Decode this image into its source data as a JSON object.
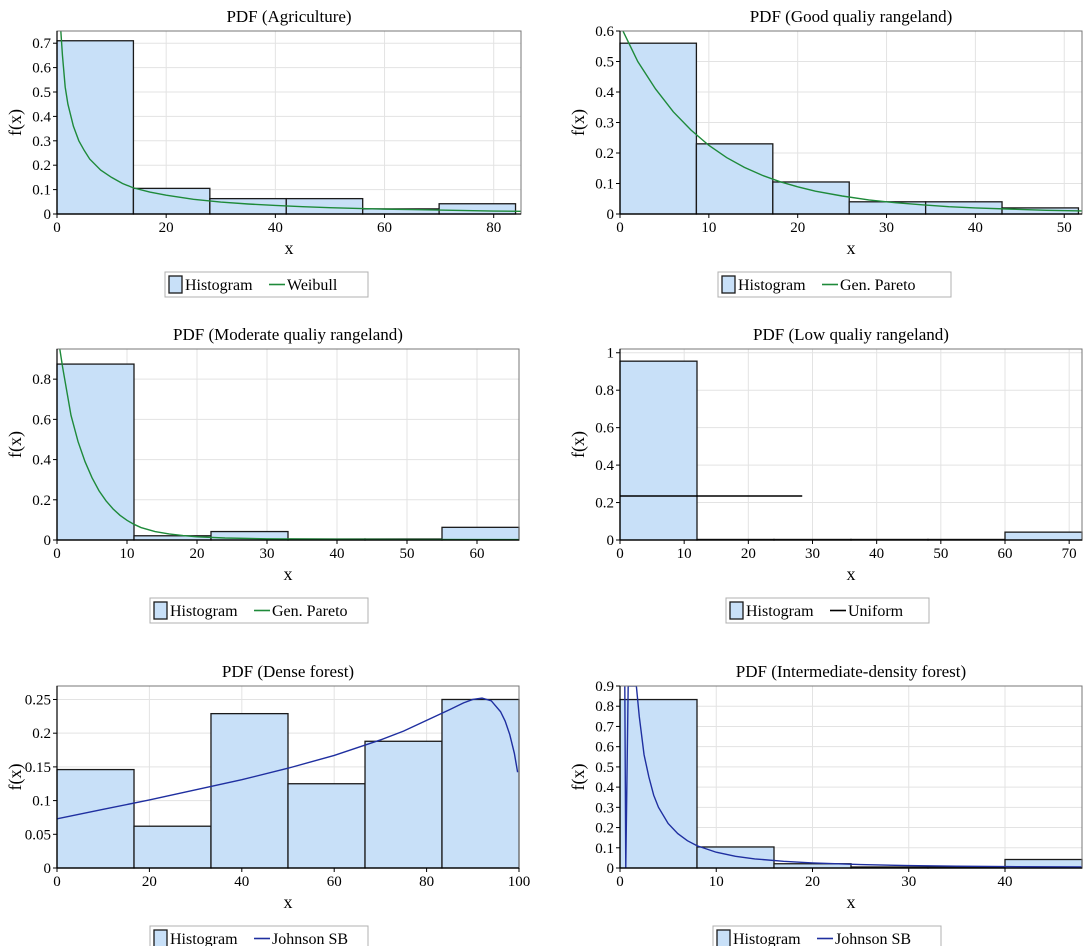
{
  "chart_data": [
    {
      "type": "bar",
      "title": "PDF (Agriculture)",
      "xlabel": "x",
      "ylabel": "f(x)",
      "xlim": [
        0,
        85
      ],
      "ylim": [
        0,
        0.75
      ],
      "xticks": [
        0,
        20,
        40,
        60,
        80
      ],
      "xtick_labels": [
        "0",
        "20",
        "40",
        "60",
        "80"
      ],
      "yticks": [
        0,
        0.1,
        0.2,
        0.3,
        0.4,
        0.5,
        0.6,
        0.7
      ],
      "ytick_labels": [
        "0",
        "0.1",
        "0.2",
        "0.3",
        "0.4",
        "0.5",
        "0.6",
        "0.7"
      ],
      "bins": [
        {
          "x0": 0,
          "x1": 14,
          "y": 0.71
        },
        {
          "x0": 14,
          "x1": 28,
          "y": 0.105
        },
        {
          "x0": 28,
          "x1": 42,
          "y": 0.063
        },
        {
          "x0": 42,
          "x1": 56,
          "y": 0.063
        },
        {
          "x0": 56,
          "x1": 70,
          "y": 0.021
        },
        {
          "x0": 70,
          "x1": 84,
          "y": 0.042
        }
      ],
      "fit": {
        "name": "Weibull",
        "color": "#1e8a3a",
        "points": [
          [
            0.7,
            0.75
          ],
          [
            1,
            0.65
          ],
          [
            1.5,
            0.52
          ],
          [
            2,
            0.45
          ],
          [
            3,
            0.36
          ],
          [
            4,
            0.3
          ],
          [
            5,
            0.26
          ],
          [
            6,
            0.225
          ],
          [
            8,
            0.18
          ],
          [
            10,
            0.15
          ],
          [
            12,
            0.125
          ],
          [
            14,
            0.107
          ],
          [
            17,
            0.09
          ],
          [
            20,
            0.077
          ],
          [
            25,
            0.06
          ],
          [
            30,
            0.049
          ],
          [
            35,
            0.041
          ],
          [
            40,
            0.035
          ],
          [
            45,
            0.03
          ],
          [
            50,
            0.026
          ],
          [
            55,
            0.023
          ],
          [
            60,
            0.02
          ],
          [
            65,
            0.018
          ],
          [
            70,
            0.016
          ],
          [
            75,
            0.014
          ],
          [
            80,
            0.012
          ],
          [
            85,
            0.011
          ]
        ]
      },
      "legend": [
        "Histogram",
        "Weibull"
      ]
    },
    {
      "type": "bar",
      "title": "PDF (Good qualiy rangeland)",
      "xlabel": "x",
      "ylabel": "f(x)",
      "xlim": [
        0,
        52
      ],
      "ylim": [
        0,
        0.6
      ],
      "xticks": [
        0,
        10,
        20,
        30,
        40,
        50
      ],
      "xtick_labels": [
        "0",
        "10",
        "20",
        "30",
        "40",
        "50"
      ],
      "yticks": [
        0,
        0.1,
        0.2,
        0.3,
        0.4,
        0.5,
        0.6
      ],
      "ytick_labels": [
        "0",
        "0.1",
        "0.2",
        "0.3",
        "0.4",
        "0.5",
        "0.6"
      ],
      "bins": [
        {
          "x0": 0,
          "x1": 8.6,
          "y": 0.56
        },
        {
          "x0": 8.6,
          "x1": 17.2,
          "y": 0.23
        },
        {
          "x0": 17.2,
          "x1": 25.8,
          "y": 0.105
        },
        {
          "x0": 25.8,
          "x1": 34.4,
          "y": 0.04
        },
        {
          "x0": 34.4,
          "x1": 43,
          "y": 0.04
        },
        {
          "x0": 43,
          "x1": 51.6,
          "y": 0.02
        }
      ],
      "fit": {
        "name": "Gen. Pareto",
        "color": "#1e8a3a",
        "points": [
          [
            0,
            0.62
          ],
          [
            2,
            0.5
          ],
          [
            4,
            0.41
          ],
          [
            6,
            0.335
          ],
          [
            8,
            0.275
          ],
          [
            10,
            0.225
          ],
          [
            12,
            0.185
          ],
          [
            14,
            0.153
          ],
          [
            16,
            0.127
          ],
          [
            18,
            0.106
          ],
          [
            20,
            0.089
          ],
          [
            22,
            0.075
          ],
          [
            25,
            0.059
          ],
          [
            28,
            0.046
          ],
          [
            31,
            0.037
          ],
          [
            34,
            0.03
          ],
          [
            37,
            0.024
          ],
          [
            40,
            0.02
          ],
          [
            44,
            0.016
          ],
          [
            48,
            0.012
          ],
          [
            52,
            0.01
          ]
        ]
      },
      "legend": [
        "Histogram",
        "Gen. Pareto"
      ]
    },
    {
      "type": "bar",
      "title": "PDF (Moderate qualiy rangeland)",
      "xlabel": "x",
      "ylabel": "f(x)",
      "xlim": [
        0,
        66
      ],
      "ylim": [
        0,
        0.95
      ],
      "xticks": [
        0,
        10,
        20,
        30,
        40,
        50,
        60
      ],
      "xtick_labels": [
        "0",
        "10",
        "20",
        "30",
        "40",
        "50",
        "60"
      ],
      "yticks": [
        0,
        0.2,
        0.4,
        0.6,
        0.8
      ],
      "ytick_labels": [
        "0",
        "0.2",
        "0.4",
        "0.6",
        "0.8"
      ],
      "bins": [
        {
          "x0": 0,
          "x1": 11,
          "y": 0.875
        },
        {
          "x0": 11,
          "x1": 22,
          "y": 0.021
        },
        {
          "x0": 22,
          "x1": 33,
          "y": 0.042
        },
        {
          "x0": 33,
          "x1": 44,
          "y": 0.005
        },
        {
          "x0": 44,
          "x1": 55,
          "y": 0.005
        },
        {
          "x0": 55,
          "x1": 66,
          "y": 0.063
        }
      ],
      "fit": {
        "name": "Gen. Pareto",
        "color": "#1e8a3a",
        "points": [
          [
            0.4,
            0.95
          ],
          [
            0.8,
            0.86
          ],
          [
            1.5,
            0.72
          ],
          [
            2,
            0.62
          ],
          [
            3,
            0.49
          ],
          [
            4,
            0.39
          ],
          [
            5,
            0.31
          ],
          [
            6,
            0.245
          ],
          [
            7,
            0.195
          ],
          [
            8,
            0.155
          ],
          [
            9,
            0.123
          ],
          [
            10,
            0.098
          ],
          [
            11,
            0.078
          ],
          [
            12,
            0.062
          ],
          [
            14,
            0.042
          ],
          [
            16,
            0.03
          ],
          [
            18,
            0.022
          ],
          [
            20,
            0.016
          ],
          [
            24,
            0.01
          ],
          [
            30,
            0.006
          ],
          [
            40,
            0.004
          ],
          [
            50,
            0.003
          ],
          [
            66,
            0.002
          ]
        ]
      },
      "legend": [
        "Histogram",
        "Gen. Pareto"
      ]
    },
    {
      "type": "bar",
      "title": "PDF (Low qualiy rangeland)",
      "xlabel": "x",
      "ylabel": "f(x)",
      "xlim": [
        0,
        72
      ],
      "ylim": [
        0,
        1.02
      ],
      "xticks": [
        0,
        10,
        20,
        30,
        40,
        50,
        60,
        70
      ],
      "xtick_labels": [
        "0",
        "10",
        "20",
        "30",
        "40",
        "50",
        "60",
        "70"
      ],
      "yticks": [
        0,
        0.2,
        0.4,
        0.6,
        0.8,
        1
      ],
      "ytick_labels": [
        "0",
        "0.2",
        "0.4",
        "0.6",
        "0.8",
        "1"
      ],
      "bins": [
        {
          "x0": 0,
          "x1": 12,
          "y": 0.955
        },
        {
          "x0": 12,
          "x1": 24,
          "y": 0.003
        },
        {
          "x0": 24,
          "x1": 36,
          "y": 0.003
        },
        {
          "x0": 36,
          "x1": 48,
          "y": 0.003
        },
        {
          "x0": 48,
          "x1": 60,
          "y": 0.003
        },
        {
          "x0": 60,
          "x1": 72,
          "y": 0.042
        }
      ],
      "fit": {
        "name": "Uniform",
        "color": "#000000",
        "points": [
          [
            0,
            0.235
          ],
          [
            28.4,
            0.235
          ]
        ]
      },
      "legend": [
        "Histogram",
        "Uniform"
      ]
    },
    {
      "type": "bar",
      "title": "PDF (Dense forest)",
      "xlabel": "x",
      "ylabel": "f(x)",
      "xlim": [
        0,
        100
      ],
      "ylim": [
        0,
        0.27
      ],
      "xticks": [
        0,
        20,
        40,
        60,
        80,
        100
      ],
      "xtick_labels": [
        "0",
        "20",
        "40",
        "60",
        "80",
        "100"
      ],
      "yticks": [
        0,
        0.05,
        0.1,
        0.15,
        0.2,
        0.25
      ],
      "ytick_labels": [
        "0",
        "0.05",
        "0.1",
        "0.15",
        "0.2",
        "0.25"
      ],
      "bins": [
        {
          "x0": 0,
          "x1": 16.67,
          "y": 0.146
        },
        {
          "x0": 16.67,
          "x1": 33.33,
          "y": 0.062
        },
        {
          "x0": 33.33,
          "x1": 50,
          "y": 0.229
        },
        {
          "x0": 50,
          "x1": 66.67,
          "y": 0.125
        },
        {
          "x0": 66.67,
          "x1": 83.33,
          "y": 0.188
        },
        {
          "x0": 83.33,
          "x1": 100,
          "y": 0.25
        }
      ],
      "fit": {
        "name": "Johnson SB",
        "color": "#1f2fa0",
        "points": [
          [
            0,
            0.073
          ],
          [
            10,
            0.087
          ],
          [
            20,
            0.101
          ],
          [
            30,
            0.116
          ],
          [
            40,
            0.131
          ],
          [
            50,
            0.148
          ],
          [
            60,
            0.167
          ],
          [
            70,
            0.19
          ],
          [
            75,
            0.203
          ],
          [
            80,
            0.219
          ],
          [
            85,
            0.235
          ],
          [
            88,
            0.245
          ],
          [
            90,
            0.25
          ],
          [
            92,
            0.252
          ],
          [
            94,
            0.248
          ],
          [
            96,
            0.232
          ],
          [
            97,
            0.218
          ],
          [
            98,
            0.198
          ],
          [
            99,
            0.17
          ],
          [
            99.7,
            0.142
          ]
        ]
      },
      "legend": [
        "Histogram",
        "Johnson SB"
      ]
    },
    {
      "type": "bar",
      "title": "PDF (Intermediate-density forest)",
      "xlabel": "x",
      "ylabel": "f(x)",
      "xlim": [
        0,
        48
      ],
      "ylim": [
        0,
        0.9
      ],
      "xticks": [
        0,
        10,
        20,
        30,
        40
      ],
      "xtick_labels": [
        "0",
        "10",
        "20",
        "30",
        "40"
      ],
      "yticks": [
        0,
        0.1,
        0.2,
        0.3,
        0.4,
        0.5,
        0.6,
        0.7,
        0.8,
        0.9
      ],
      "ytick_labels": [
        "0",
        "0.1",
        "0.2",
        "0.3",
        "0.4",
        "0.5",
        "0.6",
        "0.7",
        "0.8",
        "0.9"
      ],
      "bins": [
        {
          "x0": 0,
          "x1": 8,
          "y": 0.833
        },
        {
          "x0": 8,
          "x1": 16,
          "y": 0.104
        },
        {
          "x0": 16,
          "x1": 24,
          "y": 0.021
        },
        {
          "x0": 24,
          "x1": 32,
          "y": 0.005
        },
        {
          "x0": 32,
          "x1": 40,
          "y": 0.005
        },
        {
          "x0": 40,
          "x1": 48,
          "y": 0.042
        }
      ],
      "fit": {
        "name": "Johnson SB",
        "color": "#1f2fa0",
        "points": [
          [
            0.5,
            0.9
          ],
          [
            0.6,
            0
          ],
          [
            0.85,
            0.9
          ],
          [
            1.7,
            0.9
          ],
          [
            2,
            0.75
          ],
          [
            2.5,
            0.56
          ],
          [
            3,
            0.45
          ],
          [
            3.5,
            0.36
          ],
          [
            4,
            0.3
          ],
          [
            5,
            0.22
          ],
          [
            6,
            0.17
          ],
          [
            7,
            0.135
          ],
          [
            8,
            0.11
          ],
          [
            10,
            0.078
          ],
          [
            12,
            0.058
          ],
          [
            14,
            0.045
          ],
          [
            17,
            0.033
          ],
          [
            20,
            0.025
          ],
          [
            25,
            0.017
          ],
          [
            30,
            0.012
          ],
          [
            35,
            0.009
          ],
          [
            40,
            0.007
          ],
          [
            48,
            0.005
          ]
        ]
      },
      "legend": [
        "Histogram",
        "Johnson SB"
      ]
    }
  ]
}
